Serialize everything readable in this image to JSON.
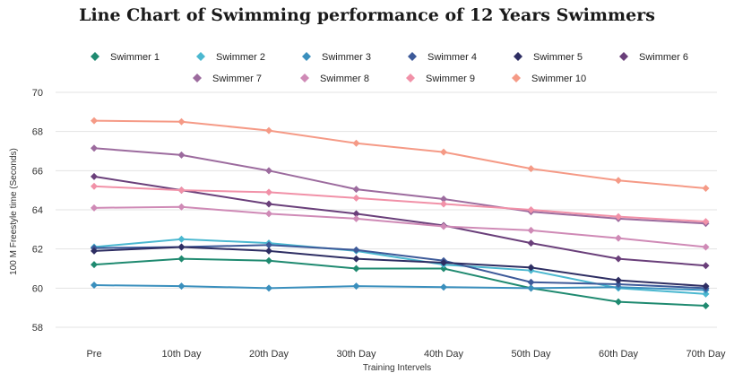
{
  "chart_data": {
    "type": "line",
    "title": "Line Chart of Swimming performance of 12 Years Swimmers",
    "xlabel": "Training Intervels",
    "ylabel": "100 M Freestyle time (Seconds)",
    "ylim": [
      58,
      70
    ],
    "yticks": [
      58,
      60,
      62,
      64,
      66,
      68,
      70
    ],
    "grid": true,
    "legend_position": "top",
    "categories": [
      "Pre",
      "10th Day",
      "20th Day",
      "30th Day",
      "40th Day",
      "50th Day",
      "60th Day",
      "70th Day"
    ],
    "series": [
      {
        "name": "Swimmer 1",
        "color": "#1f8a70",
        "values": [
          61.2,
          61.5,
          61.4,
          61.0,
          61.0,
          60.0,
          59.3,
          59.1
        ]
      },
      {
        "name": "Swimmer 2",
        "color": "#4bb8d0",
        "values": [
          62.1,
          62.5,
          62.3,
          61.9,
          61.2,
          60.9,
          60.0,
          59.7
        ]
      },
      {
        "name": "Swimmer 3",
        "color": "#3a8fbd",
        "values": [
          60.15,
          60.1,
          60.0,
          60.1,
          60.05,
          60.0,
          60.05,
          59.9
        ]
      },
      {
        "name": "Swimmer 4",
        "color": "#3d5a99",
        "values": [
          62.05,
          62.1,
          62.2,
          61.95,
          61.4,
          60.3,
          60.2,
          60.0
        ]
      },
      {
        "name": "Swimmer 5",
        "color": "#2e2e63",
        "values": [
          61.9,
          62.1,
          61.9,
          61.5,
          61.3,
          61.05,
          60.4,
          60.1
        ]
      },
      {
        "name": "Swimmer 6",
        "color": "#6a3f7a",
        "values": [
          65.7,
          65.0,
          64.3,
          63.8,
          63.2,
          62.3,
          61.5,
          61.15
        ]
      },
      {
        "name": "Swimmer 7",
        "color": "#9c6b9e",
        "values": [
          67.15,
          66.8,
          66.0,
          65.05,
          64.55,
          63.9,
          63.55,
          63.3
        ]
      },
      {
        "name": "Swimmer 8",
        "color": "#cf8ab6",
        "values": [
          64.1,
          64.15,
          63.8,
          63.55,
          63.15,
          62.95,
          62.55,
          62.1
        ]
      },
      {
        "name": "Swimmer 9",
        "color": "#f191a8",
        "values": [
          65.2,
          65.0,
          64.9,
          64.6,
          64.3,
          64.0,
          63.65,
          63.4
        ]
      },
      {
        "name": "Swimmer 10",
        "color": "#f59a86",
        "values": [
          68.55,
          68.5,
          68.05,
          67.4,
          66.95,
          66.1,
          65.5,
          65.1
        ]
      }
    ]
  }
}
